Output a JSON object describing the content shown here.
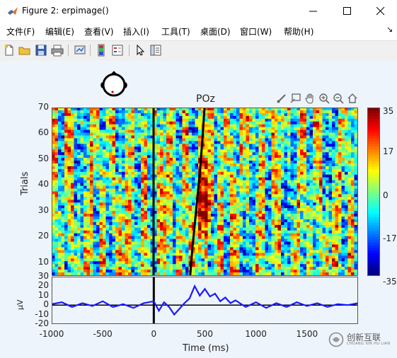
{
  "window": {
    "title": "Figure 2:  erpimage()",
    "controls": [
      "minimize",
      "maximize",
      "close"
    ]
  },
  "menu": [
    "文件(F)",
    "编辑(E)",
    "查看(V)",
    "插入(I)",
    "工具(T)",
    "桌面(D)",
    "窗口(W)",
    "帮助(H)"
  ],
  "toolbar": [
    "new-figure",
    "open-file",
    "save",
    "print",
    "link-plot",
    "insert-colorbar",
    "insert-legend",
    "edit-plot",
    "property-inspector"
  ],
  "axes_toolbar": [
    "brush",
    "data-tips",
    "pan",
    "zoom-in",
    "zoom-out",
    "restore-view"
  ],
  "channel": "POz",
  "colors": {
    "accent": "#0072bd",
    "erp_line": "#1a1aff",
    "rt_line": "#000000"
  },
  "chart_data": [
    {
      "type": "heatmap",
      "title": "POz",
      "xlabel": "Time (ms)",
      "ylabel": "Trials",
      "xlim": [
        -1000,
        2000
      ],
      "ylim": [
        5,
        70
      ],
      "yticks": [
        10,
        20,
        30,
        40,
        50,
        60,
        70
      ],
      "colorbar": {
        "ticks": [
          "35",
          "17",
          "0",
          "-17",
          "-35"
        ],
        "clim": [
          -35,
          35
        ]
      },
      "stimulus_onset_ms": 0,
      "rt_curve": {
        "x_ms": [
          360,
          380,
          405,
          430,
          455,
          480,
          500
        ],
        "trial": [
          5,
          15,
          25,
          35,
          45,
          58,
          70
        ]
      }
    },
    {
      "type": "line",
      "xlabel": "Time (ms)",
      "ylabel": "μV",
      "xlim": [
        -1000,
        2000
      ],
      "ylim": [
        -20,
        30
      ],
      "xticks": [
        "-1000",
        "-500",
        "0",
        "500",
        "1000",
        "1500"
      ],
      "yticks": [
        "30",
        "20",
        "10",
        "0",
        "-10",
        "-20"
      ],
      "series": [
        {
          "x": [
            -1000,
            -900,
            -800,
            -700,
            -600,
            -500,
            -400,
            -300,
            -200,
            -100,
            0,
            50,
            100,
            150,
            200,
            250,
            300,
            350,
            400,
            450,
            500,
            550,
            600,
            650,
            700,
            750,
            800,
            900,
            1000,
            1100,
            1200,
            1300,
            1400,
            1500,
            1600,
            1700,
            1800,
            1900,
            2000
          ],
          "values": [
            1,
            3,
            -2,
            2,
            -1,
            4,
            -2,
            1,
            -3,
            2,
            4,
            -6,
            3,
            -2,
            -10,
            -4,
            2,
            7,
            20,
            10,
            17,
            9,
            12,
            4,
            8,
            2,
            5,
            -2,
            3,
            -3,
            2,
            -2,
            3,
            -1,
            2,
            -2,
            1,
            0,
            2
          ]
        }
      ]
    }
  ],
  "watermark": {
    "text": "创新互联",
    "sub": "CHUANG XIN HU LIAN"
  }
}
